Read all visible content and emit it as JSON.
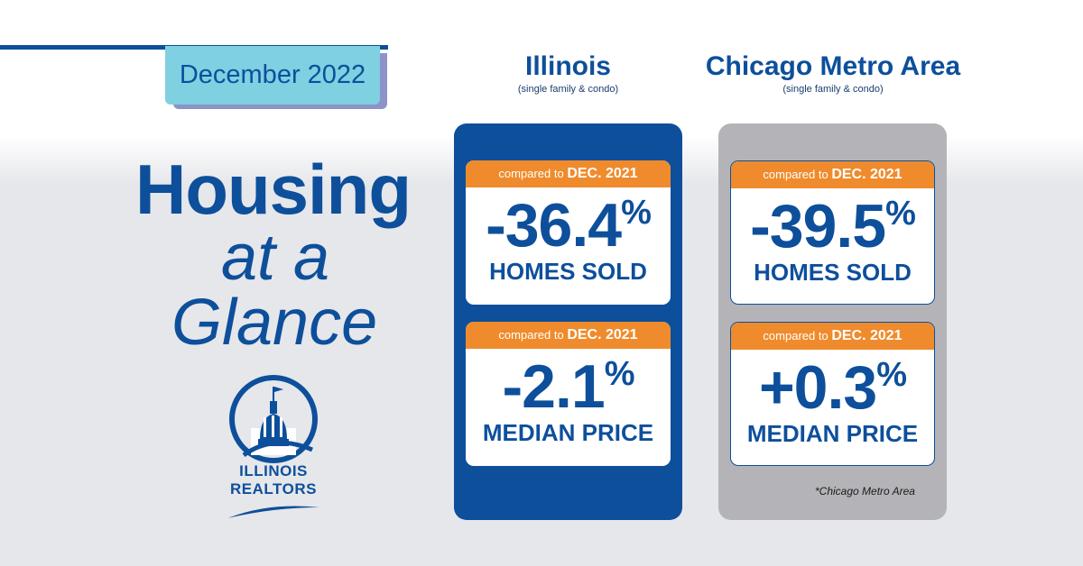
{
  "date_label": "December 2022",
  "headline": {
    "line1": "Housing",
    "line2": "at a",
    "line3": "Glance"
  },
  "logo": {
    "line1": "ILLINOIS",
    "line2": "REALTORS"
  },
  "columns": [
    {
      "title": "Illinois",
      "subtitle": "(single family & condo)",
      "cards": [
        {
          "compare_prefix": "compared to",
          "compare_date": "DEC. 2021",
          "value": "-36.4",
          "unit": "%",
          "label": "HOMES SOLD"
        },
        {
          "compare_prefix": "compared to",
          "compare_date": "DEC. 2021",
          "value": "-2.1",
          "unit": "%",
          "label": "MEDIAN PRICE"
        }
      ]
    },
    {
      "title": "Chicago Metro Area",
      "subtitle": "(single family & condo)",
      "cards": [
        {
          "compare_prefix": "compared to",
          "compare_date": "DEC. 2021",
          "value": "-39.5",
          "unit": "%",
          "label": "HOMES SOLD"
        },
        {
          "compare_prefix": "compared to",
          "compare_date": "DEC. 2021",
          "value": "+0.3",
          "unit": "%",
          "label": "MEDIAN PRICE"
        }
      ]
    }
  ],
  "footnote": "*Chicago Metro Area",
  "colors": {
    "brand_blue": "#0d4f9b",
    "accent_orange": "#ef8b2c",
    "tab_cyan": "#7fd0e1",
    "panel_gray": "#b4b4b8"
  }
}
